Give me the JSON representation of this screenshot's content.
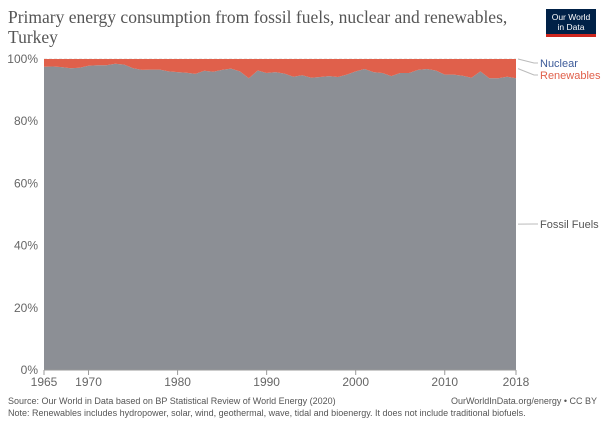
{
  "header": {
    "title": "Primary energy consumption from fossil fuels, nuclear and renewables, Turkey",
    "logo_line1": "Our World",
    "logo_line2": "in Data"
  },
  "footer": {
    "source": "Source: Our World in Data based on BP Statistical Review of World Energy (2020)",
    "url": "OurWorldInData.org/energy • CC BY",
    "note": "Note: Renewables includes hydropower, solar, wind, geothermal, wave, tidal and bioenergy. It does not include traditional biofuels."
  },
  "colors": {
    "fossil": "#8c8f95",
    "renewables": "#e0604b",
    "nuclear": "#3c5a99",
    "grid": "#dddddd",
    "text": "#555555"
  },
  "chart_data": {
    "type": "area",
    "stacked": true,
    "x": [
      1965,
      1966,
      1967,
      1968,
      1969,
      1970,
      1971,
      1972,
      1973,
      1974,
      1975,
      1976,
      1977,
      1978,
      1979,
      1980,
      1981,
      1982,
      1983,
      1984,
      1985,
      1986,
      1987,
      1988,
      1989,
      1990,
      1991,
      1992,
      1993,
      1994,
      1995,
      1996,
      1997,
      1998,
      1999,
      2000,
      2001,
      2002,
      2003,
      2004,
      2005,
      2006,
      2007,
      2008,
      2009,
      2010,
      2011,
      2012,
      2013,
      2014,
      2015,
      2016,
      2017,
      2018
    ],
    "series": [
      {
        "name": "Fossil Fuels",
        "values": [
          97.5,
          97.6,
          97.4,
          97.0,
          97.2,
          97.8,
          98.0,
          98.0,
          98.5,
          98.2,
          97.0,
          96.5,
          96.6,
          96.6,
          96.0,
          95.8,
          95.6,
          95.2,
          96.2,
          95.9,
          96.5,
          96.9,
          96.0,
          93.8,
          96.3,
          95.5,
          95.8,
          95.3,
          94.3,
          94.8,
          94.0,
          94.2,
          94.5,
          94.2,
          95.0,
          96.0,
          96.8,
          95.8,
          95.5,
          94.5,
          95.5,
          95.5,
          96.5,
          96.8,
          96.3,
          95.0,
          95.0,
          94.6,
          94.0,
          96.0,
          93.8,
          93.8,
          94.3,
          93.8
        ]
      },
      {
        "name": "Renewables",
        "values": [
          2.5,
          2.4,
          2.6,
          3.0,
          2.8,
          2.2,
          2.0,
          2.0,
          1.5,
          1.8,
          3.0,
          3.5,
          3.4,
          3.4,
          4.0,
          4.2,
          4.4,
          4.8,
          3.8,
          4.1,
          3.5,
          3.1,
          4.0,
          6.2,
          3.7,
          4.5,
          4.2,
          4.7,
          5.7,
          5.2,
          6.0,
          5.8,
          5.5,
          5.8,
          5.0,
          4.0,
          3.2,
          4.2,
          4.5,
          5.5,
          4.5,
          4.5,
          3.5,
          3.2,
          3.7,
          5.0,
          5.0,
          5.4,
          6.0,
          4.0,
          6.2,
          6.2,
          5.7,
          6.2
        ]
      },
      {
        "name": "Nuclear",
        "values": [
          0,
          0,
          0,
          0,
          0,
          0,
          0,
          0,
          0,
          0,
          0,
          0,
          0,
          0,
          0,
          0,
          0,
          0,
          0,
          0,
          0,
          0,
          0,
          0,
          0,
          0,
          0,
          0,
          0,
          0,
          0,
          0,
          0,
          0,
          0,
          0,
          0,
          0,
          0,
          0,
          0,
          0,
          0,
          0,
          0,
          0,
          0,
          0,
          0,
          0,
          0,
          0,
          0,
          0
        ]
      }
    ],
    "xlim": [
      1965,
      2018
    ],
    "ylim": [
      0,
      100
    ],
    "x_ticks": [
      "1965",
      "1970",
      "1980",
      "1990",
      "2000",
      "2010",
      "2018"
    ],
    "y_ticks": [
      "0%",
      "20%",
      "40%",
      "60%",
      "80%",
      "100%"
    ],
    "legend": [
      "Nuclear",
      "Renewables",
      "Fossil Fuels"
    ],
    "legend_placement": "right",
    "grid": true
  }
}
